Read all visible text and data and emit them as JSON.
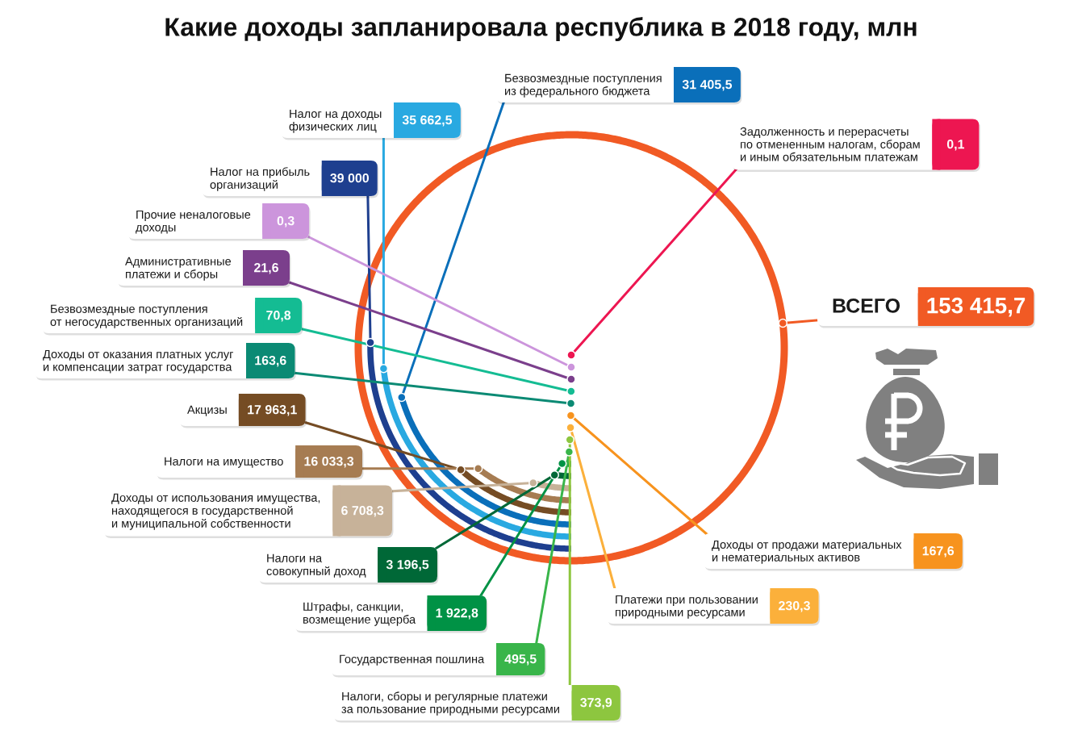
{
  "chart_data": {
    "type": "other",
    "title": "Какие доходы запланировала республика в 2018 году, млн",
    "series": [
      {
        "name": "ВСЕГО",
        "color": "#f15a24",
        "values": [
          153415.7
        ],
        "value_labels": [
          "153 415,7"
        ]
      },
      {
        "name": "Налог на прибыль\nорганизаций",
        "color": "#1e3f8f",
        "values": [
          39000
        ],
        "value_labels": [
          "39 000"
        ]
      },
      {
        "name": "Налог на доходы\nфизических лиц",
        "color": "#29a9e1",
        "values": [
          35662.5
        ],
        "value_labels": [
          "35 662,5"
        ]
      },
      {
        "name": "Безвозмездные поступления\nиз федерального бюджета",
        "color": "#0a6fba",
        "values": [
          31405.5
        ],
        "value_labels": [
          "31 405,5"
        ]
      },
      {
        "name": "Акцизы",
        "color": "#754c24",
        "values": [
          17963.1
        ],
        "value_labels": [
          "17 963,1"
        ]
      },
      {
        "name": "Налоги на имущество",
        "color": "#a67c52",
        "values": [
          16033.3
        ],
        "value_labels": [
          "16 033,3"
        ]
      },
      {
        "name": "Доходы от использования имущества,\nнаходящегося в государственной\nи муниципальной собственности",
        "color": "#c7b299",
        "values": [
          6708.3
        ],
        "value_labels": [
          "6 708,3"
        ]
      },
      {
        "name": "Налоги на\nсовокупный доход",
        "color": "#006837",
        "values": [
          3196.5
        ],
        "value_labels": [
          "3 196,5"
        ]
      },
      {
        "name": "Штрафы, санкции,\nвозмещение ущерба",
        "color": "#009245",
        "values": [
          1922.8
        ],
        "value_labels": [
          "1 922,8"
        ]
      },
      {
        "name": "Государственная пошлина",
        "color": "#39b54a",
        "values": [
          495.5
        ],
        "value_labels": [
          "495,5"
        ]
      },
      {
        "name": "Налоги, сборы и регулярные платежи\nза пользование природными ресурсами",
        "color": "#8dc63f",
        "values": [
          373.9
        ],
        "value_labels": [
          "373,9"
        ]
      },
      {
        "name": "Платежи при пользовании\nприродными ресурсами",
        "color": "#fbb03b",
        "values": [
          230.3
        ],
        "value_labels": [
          "230,3"
        ]
      },
      {
        "name": "Доходы от продажи материальных\nи нематериальных активов",
        "color": "#f7931e",
        "values": [
          167.6
        ],
        "value_labels": [
          "167,6"
        ]
      },
      {
        "name": "Доходы от оказания платных услуг\nи компенсации затрат государства",
        "color": "#0b8a74",
        "values": [
          163.6
        ],
        "value_labels": [
          "163,6"
        ]
      },
      {
        "name": "Безвозмездные поступления\nот негосударственных организаций",
        "color": "#14bc93",
        "values": [
          70.8
        ],
        "value_labels": [
          "70,8"
        ]
      },
      {
        "name": "Административные\nплатежи и сборы",
        "color": "#7b3f8c",
        "values": [
          21.6
        ],
        "value_labels": [
          "21,6"
        ]
      },
      {
        "name": "Прочие неналоговые\nдоходы",
        "color": "#cc95dc",
        "values": [
          0.3
        ],
        "value_labels": [
          "0,3"
        ]
      },
      {
        "name": "Задолженность и перерасчеты\nпо отмененным налогам, сборам\nи иным обязательным платежам",
        "color": "#ed1651",
        "values": [
          0.1
        ],
        "value_labels": [
          "0,1"
        ]
      }
    ]
  }
}
